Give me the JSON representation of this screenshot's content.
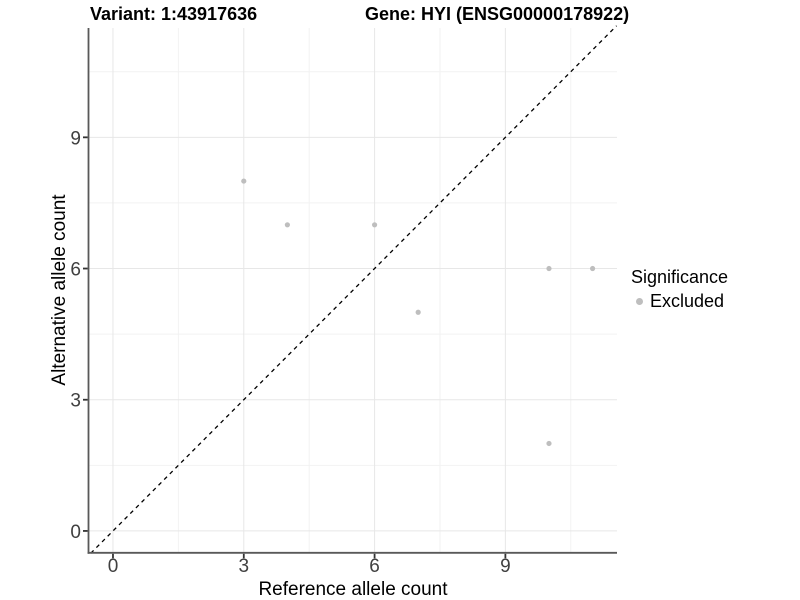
{
  "title": {
    "variant": "Variant: 1:43917636",
    "gene": "Gene: HYI (ENSG00000178922)"
  },
  "axes": {
    "x": {
      "label": "Reference allele count",
      "ticks": [
        0,
        3,
        6,
        9
      ]
    },
    "y": {
      "label": "Alternative allele count",
      "ticks": [
        0,
        3,
        6,
        9
      ]
    }
  },
  "legend": {
    "title": "Significance",
    "items": [
      {
        "label": "Excluded",
        "color": "#bebebe"
      }
    ]
  },
  "chart_data": {
    "type": "scatter",
    "title": "Variant: 1:43917636   Gene: HYI (ENSG00000178922)",
    "xlabel": "Reference allele count",
    "ylabel": "Alternative allele count",
    "xlim": [
      -0.55,
      11.56
    ],
    "ylim": [
      -0.5,
      11.5
    ],
    "x_ticks": [
      0,
      3,
      6,
      9
    ],
    "y_ticks": [
      0,
      3,
      6,
      9
    ],
    "x_minor_ticks": [
      1.5,
      4.5,
      7.5,
      10.5
    ],
    "y_minor_ticks": [
      1.5,
      4.5,
      7.5,
      10.5
    ],
    "grid": true,
    "legend_position": "right",
    "series": [
      {
        "name": "Excluded",
        "color": "#bebebe",
        "points": [
          [
            3,
            8
          ],
          [
            4,
            7
          ],
          [
            6,
            7
          ],
          [
            7,
            5
          ],
          [
            10,
            6
          ],
          [
            11,
            6
          ],
          [
            10,
            2
          ]
        ]
      }
    ],
    "reference_line": {
      "type": "identity",
      "slope": 1,
      "intercept": 0,
      "style": "dashed",
      "color": "#000000"
    }
  },
  "colors": {
    "background": "#ffffff",
    "point": "#bebebe",
    "grid_major": "#e7e7e7",
    "grid_minor": "#f2f2f2",
    "axis_line": "#595959",
    "tick_mark": "#333333",
    "tick_label": "#404040",
    "dashed_line": "#000000"
  }
}
